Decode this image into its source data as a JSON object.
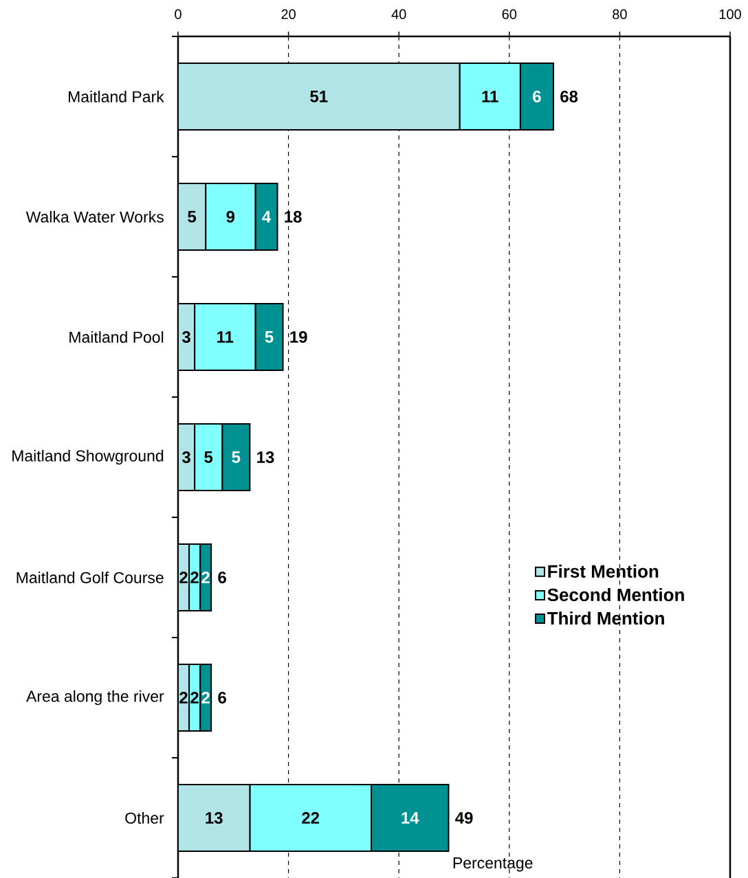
{
  "chart_data": {
    "type": "bar",
    "orientation": "horizontal",
    "stacked": true,
    "xlabel": "Percentage",
    "categories": [
      "Maitland Park",
      "Walka Water Works",
      "Maitland Pool",
      "Maitland Showground",
      "Maitland Golf Course",
      "Area along the river",
      "Other"
    ],
    "series": [
      {
        "name": "First Mention",
        "color": "#b0e4e6",
        "values": [
          51,
          5,
          3,
          3,
          2,
          2,
          13
        ]
      },
      {
        "name": "Second Mention",
        "color": "#80ffff",
        "values": [
          11,
          9,
          11,
          5,
          2,
          2,
          22
        ]
      },
      {
        "name": "Third Mention",
        "color": "#009292",
        "values": [
          6,
          4,
          5,
          5,
          2,
          2,
          14
        ]
      }
    ],
    "totals": [
      "68",
      "18",
      "19",
      "13",
      "6",
      "6",
      "49"
    ],
    "xlim": [
      0,
      100
    ],
    "xticks": [
      0,
      20,
      40,
      60,
      80,
      100
    ],
    "grid": "x",
    "legend": "right",
    "data_labels": true
  }
}
